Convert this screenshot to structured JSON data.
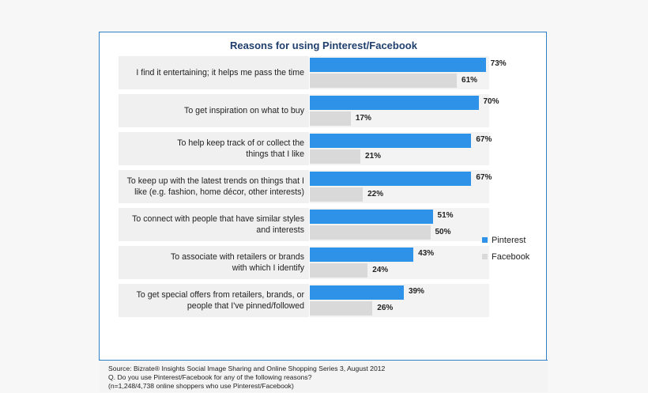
{
  "chart_data": {
    "type": "bar",
    "orientation": "horizontal",
    "title": "Reasons for using Pinterest/Facebook",
    "categories": [
      "I find it entertaining; it helps me pass the time",
      "To get inspiration on what to buy",
      "To help keep track of or collect the things that I like",
      "To keep up with the latest trends on things that I like (e.g. fashion, home décor, other interests)",
      "To connect with people that have similar styles and interests",
      "To associate with retailers or brands with which I identify",
      "To get special offers from retailers, brands, or people that I've pinned/followed"
    ],
    "category_lines": [
      [
        "I find it entertaining; it helps me pass the time"
      ],
      [
        "To get inspiration on what to buy"
      ],
      [
        "To help keep track of or collect the",
        "things that I like"
      ],
      [
        "To keep up with the latest trends on things that I",
        "like (e.g. fashion, home décor, other interests)"
      ],
      [
        "To connect with people that have similar styles",
        "and interests"
      ],
      [
        "To associate with retailers or brands",
        "with which I identify"
      ],
      [
        "To get special offers from retailers, brands, or",
        "people that I've pinned/followed"
      ]
    ],
    "series": [
      {
        "name": "Pinterest",
        "color": "#2e92e8",
        "values": [
          73,
          70,
          67,
          67,
          51,
          43,
          39
        ],
        "labels": [
          "73%",
          "70%",
          "67%",
          "67%",
          "51%",
          "43%",
          "39%"
        ]
      },
      {
        "name": "Facebook",
        "color": "#d9d9d9",
        "values": [
          61,
          17,
          21,
          22,
          50,
          24,
          26
        ],
        "labels": [
          "61%",
          "17%",
          "21%",
          "22%",
          "50%",
          "24%",
          "26%"
        ]
      }
    ],
    "xlim": [
      0,
      100
    ],
    "legend_position": "right",
    "grid": false
  },
  "source": {
    "line1": "Source: Bizrate® Insights Social Image Sharing and Online Shopping Series 3, August 2012",
    "line2": "Q. Do you use Pinterest/Facebook for any of the following reasons?",
    "line3": " (n=1,248/4,738 online shoppers who use Pinterest/Facebook)"
  }
}
